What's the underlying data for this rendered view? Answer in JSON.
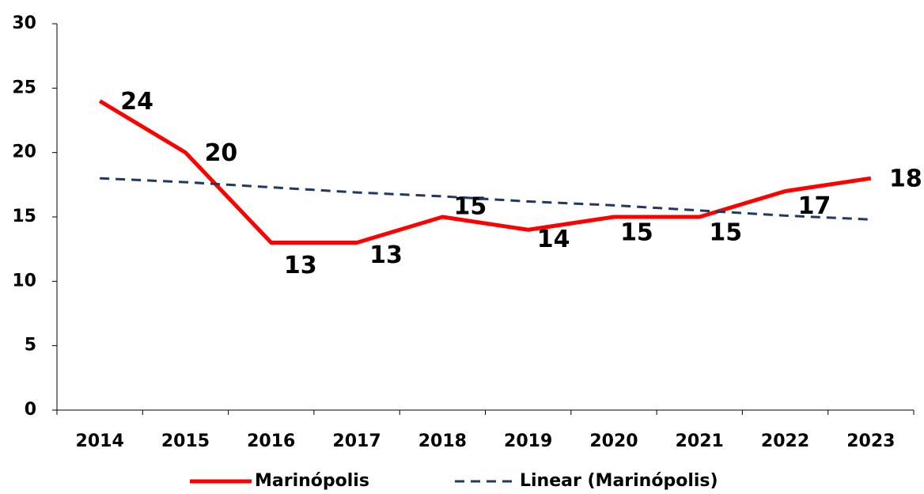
{
  "chart_data": {
    "type": "line",
    "categories": [
      "2014",
      "2015",
      "2016",
      "2017",
      "2018",
      "2019",
      "2020",
      "2021",
      "2022",
      "2023"
    ],
    "series": [
      {
        "name": "Marinópolis",
        "color": "#ff0000",
        "values": [
          24,
          20,
          13,
          13,
          15,
          14,
          15,
          15,
          17,
          18
        ],
        "data_labels": true
      },
      {
        "name": "Linear (Marinópolis)",
        "color": "#1f3864",
        "dashed": true,
        "values": [
          18.0,
          17.7,
          17.3,
          16.9,
          16.6,
          16.2,
          15.9,
          15.5,
          15.1,
          14.8
        ]
      }
    ],
    "ylim": [
      0,
      30
    ],
    "yticks": [
      0,
      5,
      10,
      15,
      20,
      25,
      30
    ],
    "grid": false,
    "legend": "bottom"
  }
}
